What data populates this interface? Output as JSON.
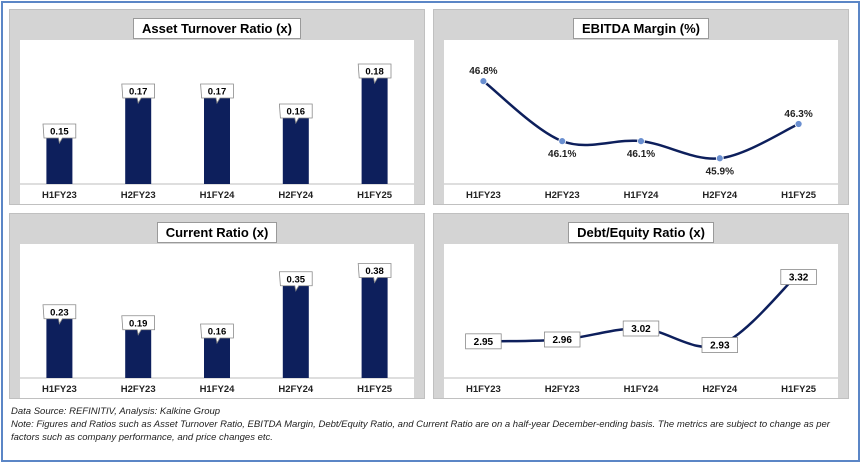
{
  "footer": {
    "source": "Data Source: REFINITIV, Analysis: Kalkine Group",
    "note": "Note: Figures and Ratios such as Asset Turnover Ratio, EBITDA Margin, Debt/Equity Ratio, and Current Ratio  are on a half-year December-ending basis. The metrics are subject to change as per factors such as company performance, and price changes etc."
  },
  "colors": {
    "bar": "#0d1f5c",
    "line": "#0d1f5c",
    "marker": "#6a8fd0",
    "panel": "#d4d4d4",
    "frame": "#5b86c6"
  },
  "chart_data": [
    {
      "type": "bar",
      "title": "Asset Turnover Ratio (x)",
      "categories": [
        "H1FY23",
        "H2FY23",
        "H1FY24",
        "H2FY24",
        "H1FY25"
      ],
      "values": [
        0.15,
        0.17,
        0.17,
        0.16,
        0.18
      ],
      "labels": [
        "0.15",
        "0.17",
        "0.17",
        "0.16",
        "0.18"
      ],
      "ylim": [
        0.125,
        0.185
      ]
    },
    {
      "type": "line",
      "title": "EBITDA Margin (%)",
      "categories": [
        "H1FY23",
        "H2FY23",
        "H1FY24",
        "H2FY24",
        "H1FY25"
      ],
      "values": [
        46.8,
        46.1,
        46.1,
        45.9,
        46.3
      ],
      "labels": [
        "46.8%",
        "46.1%",
        "46.1%",
        "45.9%",
        "46.3%"
      ],
      "ylim": [
        45.6,
        47.0
      ]
    },
    {
      "type": "bar",
      "title": "Current Ratio (x)",
      "categories": [
        "H1FY23",
        "H2FY23",
        "H1FY24",
        "H2FY24",
        "H1FY25"
      ],
      "values": [
        0.23,
        0.19,
        0.16,
        0.35,
        0.38
      ],
      "labels": [
        "0.23",
        "0.19",
        "0.16",
        "0.35",
        "0.38"
      ],
      "ylim": [
        0.0,
        0.4
      ]
    },
    {
      "type": "line",
      "title": "Debt/Equity Ratio (x)",
      "categories": [
        "H1FY23",
        "H2FY23",
        "H1FY24",
        "H2FY24",
        "H1FY25"
      ],
      "values": [
        2.95,
        2.96,
        3.02,
        2.93,
        3.32
      ],
      "labels": [
        "2.95",
        "2.96",
        "3.02",
        "2.93",
        "3.32"
      ],
      "ylim": [
        2.75,
        3.35
      ]
    }
  ]
}
